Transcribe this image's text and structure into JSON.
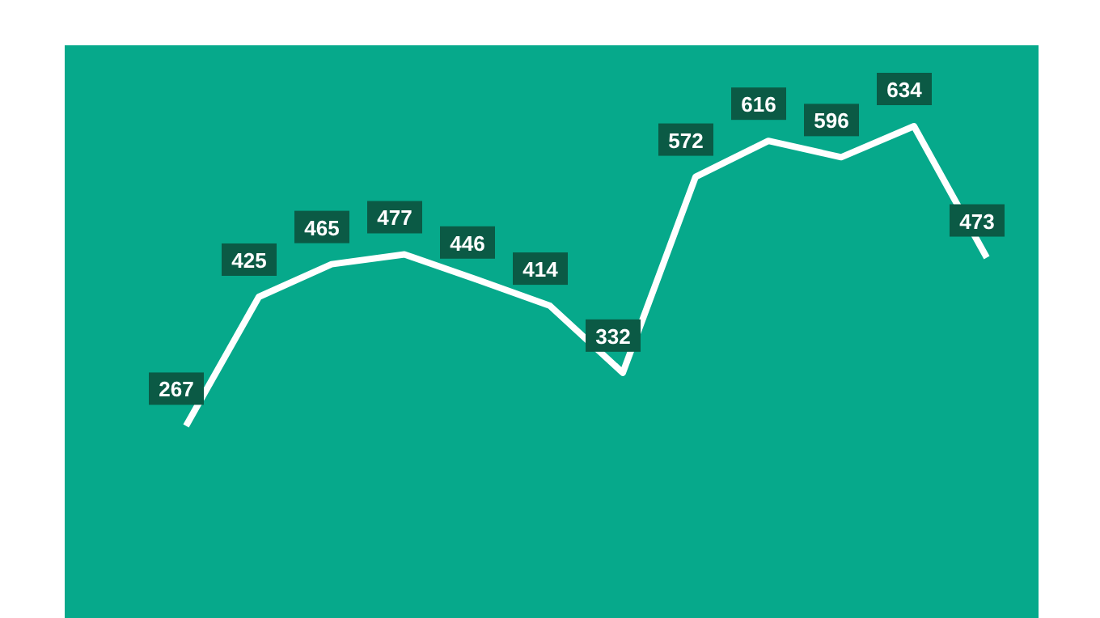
{
  "chart_data": {
    "type": "line",
    "categories": [
      null,
      null,
      null,
      null,
      null,
      null,
      null,
      null,
      null,
      null,
      null,
      null
    ],
    "series": [
      {
        "color": "#ffffff",
        "values": [
          267,
          425,
          465,
          477,
          446,
          414,
          332,
          572,
          616,
          596,
          634,
          473
        ]
      }
    ],
    "data_labels": true,
    "grid": false,
    "legend": false,
    "marker": "none",
    "line_style": "solid"
  }
}
